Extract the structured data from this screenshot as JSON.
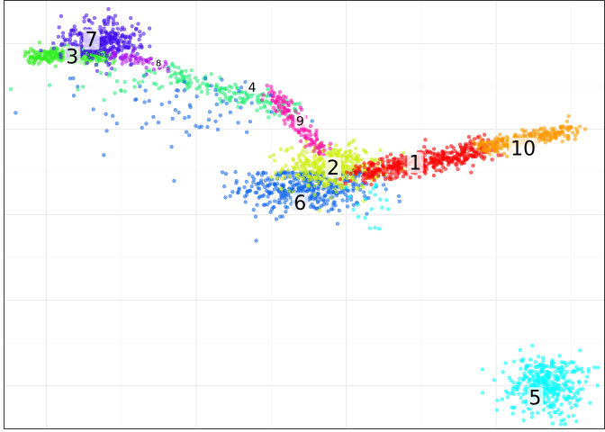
{
  "chart_data": {
    "type": "scatter",
    "title": "",
    "xlabel": "",
    "ylabel": "",
    "xlim": [
      0,
      100
    ],
    "ylim": [
      0,
      100
    ],
    "grid": true,
    "legend": "none",
    "clusters": [
      {
        "id": "1",
        "label": "1",
        "color": "#ff0000",
        "center": [
          68.5,
          62.5
        ],
        "spread": [
          7.0,
          2.2
        ],
        "count": 420,
        "label_size": "large"
      },
      {
        "id": "2",
        "label": "2",
        "color": "#ccee11",
        "center": [
          54.5,
          61.0
        ],
        "spread": [
          4.0,
          2.6
        ],
        "count": 380,
        "label_size": "large"
      },
      {
        "id": "3",
        "label": "3",
        "color": "#33ee22",
        "center": [
          10.0,
          86.5
        ],
        "spread": [
          4.8,
          1.5
        ],
        "count": 300,
        "label_size": "large"
      },
      {
        "id": "4",
        "label": "4",
        "color": "#22ee77",
        "center": [
          37.0,
          78.0
        ],
        "spread": [
          7.5,
          2.8
        ],
        "count": 160,
        "label_size": "medium"
      },
      {
        "id": "5",
        "label": "5",
        "color": "#00ffff",
        "center": [
          90.0,
          10.0
        ],
        "spread": [
          3.0,
          3.6
        ],
        "count": 380,
        "label_size": "large"
      },
      {
        "id": "6",
        "label": "6",
        "color": "#1166ee",
        "center": [
          50.5,
          56.5
        ],
        "spread": [
          5.5,
          3.0
        ],
        "count": 460,
        "label_size": "large"
      },
      {
        "id": "7",
        "label": "7",
        "color": "#4411ee",
        "center": [
          16.0,
          90.5
        ],
        "spread": [
          3.2,
          2.5
        ],
        "count": 360,
        "label_size": "large"
      },
      {
        "id": "8",
        "label": "8",
        "color": "#aa11ee",
        "center": [
          23.0,
          85.5
        ],
        "spread": [
          2.5,
          1.2
        ],
        "count": 60,
        "label_size": "small"
      },
      {
        "id": "9",
        "label": "9",
        "color": "#ff11aa",
        "center": [
          50.0,
          72.5
        ],
        "spread": [
          2.0,
          4.0
        ],
        "count": 150,
        "label_size": "medium"
      },
      {
        "id": "10",
        "label": "10",
        "color": "#ff9900",
        "center": [
          87.0,
          68.0
        ],
        "spread": [
          5.5,
          1.6
        ],
        "count": 260,
        "label_size": "large"
      }
    ],
    "label_positions": {
      "1": [
        68.5,
        62.2
      ],
      "2": [
        54.8,
        61.0
      ],
      "3": [
        11.3,
        87.0
      ],
      "4": [
        41.3,
        79.8
      ],
      "5": [
        88.5,
        7.2
      ],
      "6": [
        49.3,
        52.8
      ],
      "7": [
        14.5,
        91.0
      ],
      "8": [
        25.7,
        85.5
      ],
      "9": [
        49.3,
        71.9
      ],
      "10": [
        86.5,
        65.6
      ]
    },
    "x_grid_major": [
      7,
      32,
      57,
      82
    ],
    "y_grid_major": [
      10,
      30,
      50,
      70,
      90
    ]
  }
}
